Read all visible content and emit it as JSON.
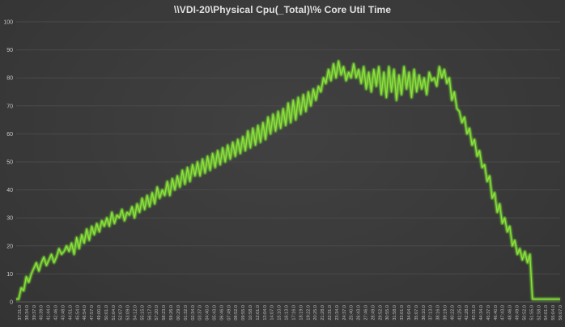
{
  "chart_data": {
    "type": "line",
    "title": "\\\\VDI-20\\Physical Cpu(_Total)\\% Core Util Time",
    "xlabel": "",
    "ylabel": "",
    "ylim": [
      0,
      100
    ],
    "yticks": [
      0,
      10,
      20,
      30,
      40,
      50,
      60,
      70,
      80,
      90,
      100
    ],
    "grid": true,
    "legend": "none",
    "colors": {
      "line": "#8fe03c",
      "glow": "#5cff1a",
      "grid": "#4a4a4a",
      "background": "#383838"
    },
    "x_tick_labels": [
      "37:31.0",
      "38:34.0",
      "39:37.0",
      "40:39.0",
      "41:44.0",
      "42:46.0",
      "43:48.0",
      "44:51.0",
      "45:54.0",
      "46:54.0",
      "47:57.0",
      "49:00.0",
      "50:01.0",
      "51:04.0",
      "52:07.0",
      "53:09.0",
      "54:12.0",
      "55:15.0",
      "56:17.0",
      "57:20.0",
      "58:23.0",
      "59:26.0",
      "00:29.0",
      "01:32.0",
      "02:34.0",
      "03:37.0",
      "04:40.0",
      "05:43.0",
      "06:46.0",
      "07:49.0",
      "08:52.0",
      "09:55.0",
      "10:58.0",
      "12:01.0",
      "13:04.0",
      "14:07.0",
      "15:10.0",
      "16:13.0",
      "17:16.0",
      "18:19.0",
      "19:22.0",
      "20:25.0",
      "21:28.0",
      "22:31.0",
      "23:34.0",
      "24:37.0",
      "25:40.0",
      "26:43.0",
      "27:46.0",
      "28:49.0",
      "29:52.0",
      "30:55.0",
      "31:58.0",
      "33:01.0",
      "34:04.0",
      "35:07.0",
      "36:10.0",
      "37:13.0",
      "38:16.0",
      "39:19.0",
      "40:22.0",
      "41:25.0",
      "42:28.0",
      "43:31.0",
      "44:34.0",
      "45:37.0",
      "46:40.0",
      "47:43.0",
      "48:46.0",
      "49:49.0",
      "50:52.0",
      "51:55.0",
      "52:58.0",
      "54:01.0",
      "55:04.0",
      "56:07.0"
    ],
    "series": [
      {
        "name": "",
        "values": [
          1,
          1,
          5,
          4,
          9,
          7,
          10,
          12,
          14,
          11,
          14,
          16,
          13,
          15,
          17,
          14,
          16,
          19,
          17,
          18,
          20,
          18,
          21,
          17,
          23,
          19,
          24,
          21,
          26,
          22,
          27,
          24,
          28,
          25,
          29,
          27,
          30,
          27,
          32,
          28,
          31,
          30,
          33,
          29,
          32,
          31,
          34,
          30,
          35,
          32,
          37,
          33,
          38,
          34,
          39,
          35,
          41,
          37,
          40,
          38,
          43,
          38,
          44,
          40,
          45,
          41,
          47,
          42,
          48,
          43,
          49,
          45,
          50,
          45,
          51,
          46,
          52,
          47,
          53,
          48,
          54,
          49,
          55,
          50,
          56,
          51,
          57,
          52,
          58,
          53,
          59,
          54,
          61,
          55,
          62,
          56,
          63,
          57,
          64,
          58,
          66,
          60,
          67,
          61,
          68,
          62,
          69,
          63,
          71,
          64,
          72,
          65,
          73,
          67,
          74,
          68,
          75,
          70,
          76,
          72,
          77,
          75,
          80,
          78,
          83,
          79,
          85,
          80,
          86,
          81,
          84,
          79,
          82,
          80,
          85,
          80,
          83,
          78,
          84,
          76,
          82,
          75,
          83,
          77,
          84,
          74,
          82,
          73,
          84,
          75,
          83,
          72,
          81,
          74,
          84,
          76,
          82,
          73,
          83,
          75,
          81,
          76,
          80,
          74,
          82,
          79,
          80,
          77,
          84,
          80,
          83,
          78,
          80,
          72,
          75,
          69,
          68,
          64,
          66,
          60,
          62,
          56,
          58,
          52,
          54,
          48,
          49,
          43,
          45,
          37,
          39,
          32,
          35,
          28,
          30,
          25,
          27,
          20,
          22,
          17,
          19,
          15,
          18,
          14,
          17,
          1,
          1,
          1,
          1,
          1,
          1,
          1,
          1,
          1,
          1,
          1,
          1
        ]
      }
    ]
  }
}
